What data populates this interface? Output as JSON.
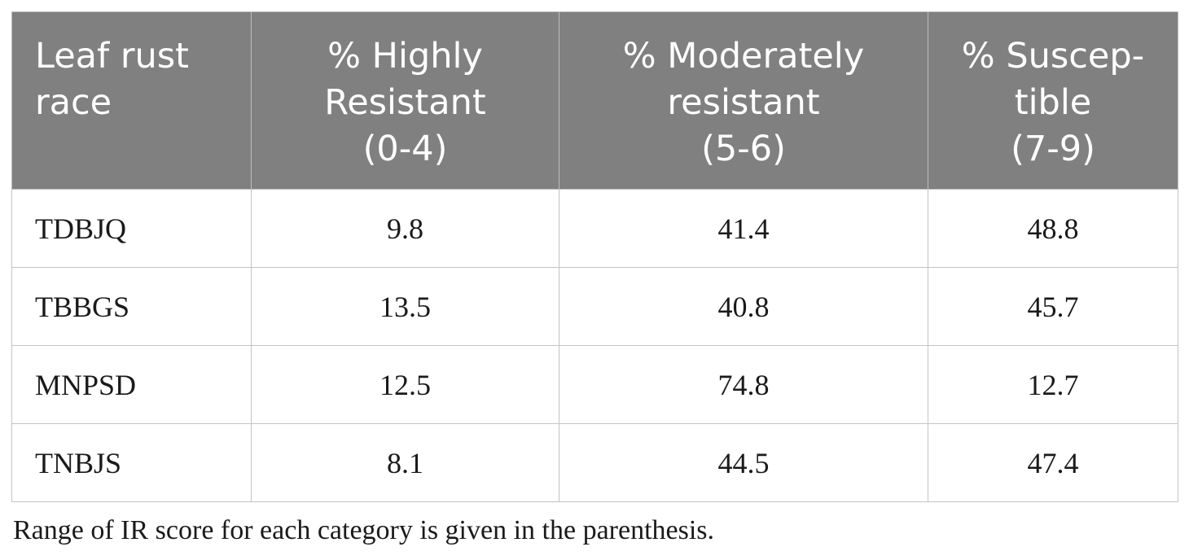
{
  "table": {
    "headers": [
      [
        "Leaf rust",
        "race"
      ],
      [
        "% Highly",
        "Resistant",
        "(0-4)"
      ],
      [
        "% Moderately",
        "resistant",
        "(5-6)"
      ],
      [
        "% Suscep-",
        "tible",
        "(7-9)"
      ]
    ],
    "rows": [
      [
        "TDBJQ",
        "9.8",
        "41.4",
        "48.8"
      ],
      [
        "TBBGS",
        "13.5",
        "40.8",
        "45.7"
      ],
      [
        "MNPSD",
        "12.5",
        "74.8",
        "12.7"
      ],
      [
        "TNBJS",
        "8.1",
        "44.5",
        "47.4"
      ]
    ]
  },
  "footnote": "Range of IR score for each category is given in the parenthesis."
}
